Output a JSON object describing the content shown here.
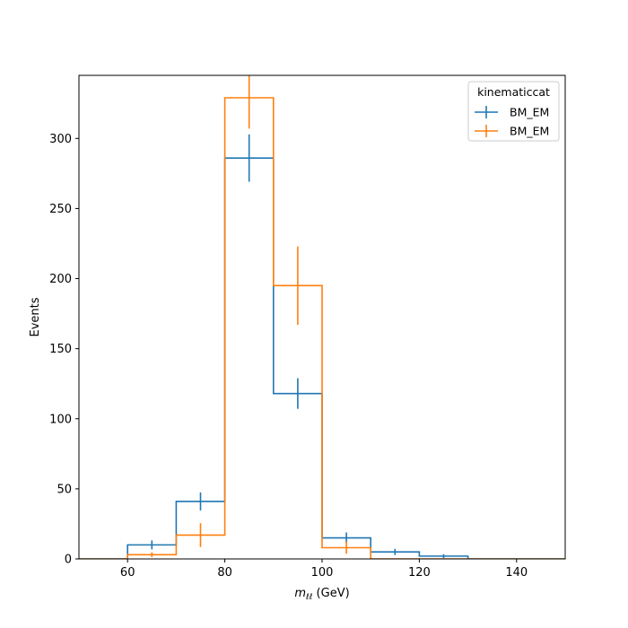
{
  "chart_data": {
    "type": "histogram-step",
    "xlabel_main": "m",
    "xlabel_sub": "ℓℓ",
    "xlabel_unit": " (GeV)",
    "ylabel": "Events",
    "xlim": [
      50,
      150
    ],
    "ylim": [
      0,
      345
    ],
    "xticks": [
      60,
      80,
      100,
      120,
      140
    ],
    "yticks": [
      0,
      50,
      100,
      150,
      200,
      250,
      300
    ],
    "bin_edges": [
      60,
      70,
      80,
      90,
      100,
      110,
      120,
      130
    ],
    "legend": {
      "title": "kinematiccat",
      "position": "top-right"
    },
    "series": [
      {
        "name": "BM_EM",
        "color": "#1f77b4",
        "values": [
          10,
          41,
          286,
          118,
          15,
          5,
          2
        ],
        "errors": [
          3.2,
          6.4,
          16.9,
          10.9,
          3.9,
          2.2,
          1.4
        ]
      },
      {
        "name": "BM_EM",
        "color": "#ff7f0e",
        "values": [
          3,
          17,
          329,
          195,
          8,
          0,
          0
        ],
        "errors": [
          1.7,
          8.5,
          22,
          28,
          4.3,
          0,
          0
        ]
      }
    ]
  }
}
